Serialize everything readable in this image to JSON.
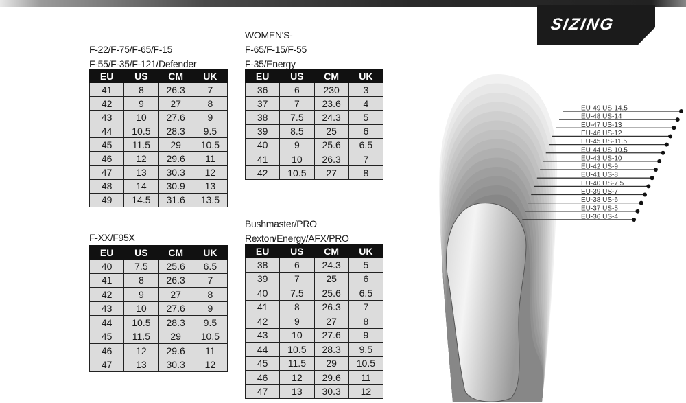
{
  "header": {
    "title": "SIZING"
  },
  "tables": [
    {
      "title_lines": [
        "F-22/F-75/F-65/F-15",
        "F-55/F-35/F-121/Defender"
      ],
      "columns": [
        "EU",
        "US",
        "CM",
        "UK"
      ],
      "rows": [
        [
          "41",
          "8",
          "26.3",
          "7"
        ],
        [
          "42",
          "9",
          "27",
          "8"
        ],
        [
          "43",
          "10",
          "27.6",
          "9"
        ],
        [
          "44",
          "10.5",
          "28.3",
          "9.5"
        ],
        [
          "45",
          "11.5",
          "29",
          "10.5"
        ],
        [
          "46",
          "12",
          "29.6",
          "11"
        ],
        [
          "47",
          "13",
          "30.3",
          "12"
        ],
        [
          "48",
          "14",
          "30.9",
          "13"
        ],
        [
          "49",
          "14.5",
          "31.6",
          "13.5"
        ]
      ]
    },
    {
      "title_lines": [
        "WOMEN'S-",
        "F-65/F-15/F-55",
        "F-35/Energy"
      ],
      "columns": [
        "EU",
        "US",
        "CM",
        "UK"
      ],
      "rows": [
        [
          "36",
          "6",
          "230",
          "3"
        ],
        [
          "37",
          "7",
          "23.6",
          "4"
        ],
        [
          "38",
          "7.5",
          "24.3",
          "5"
        ],
        [
          "39",
          "8.5",
          "25",
          "6"
        ],
        [
          "40",
          "9",
          "25.6",
          "6.5"
        ],
        [
          "41",
          "10",
          "26.3",
          "7"
        ],
        [
          "42",
          "10.5",
          "27",
          "8"
        ]
      ]
    },
    {
      "title_lines": [
        "F-XX/F95X"
      ],
      "columns": [
        "EU",
        "US",
        "CM",
        "UK"
      ],
      "rows": [
        [
          "40",
          "7.5",
          "25.6",
          "6.5"
        ],
        [
          "41",
          "8",
          "26.3",
          "7"
        ],
        [
          "42",
          "9",
          "27",
          "8"
        ],
        [
          "43",
          "10",
          "27.6",
          "9"
        ],
        [
          "44",
          "10.5",
          "28.3",
          "9.5"
        ],
        [
          "45",
          "11.5",
          "29",
          "10.5"
        ],
        [
          "46",
          "12",
          "29.6",
          "11"
        ],
        [
          "47",
          "13",
          "30.3",
          "12"
        ]
      ]
    },
    {
      "title_lines": [
        "Bushmaster/PRO",
        "Rexton/Energy/AFX/PRO"
      ],
      "columns": [
        "EU",
        "US",
        "CM",
        "UK"
      ],
      "rows": [
        [
          "38",
          "6",
          "24.3",
          "5"
        ],
        [
          "39",
          "7",
          "25",
          "6"
        ],
        [
          "40",
          "7.5",
          "25.6",
          "6.5"
        ],
        [
          "41",
          "8",
          "26.3",
          "7"
        ],
        [
          "42",
          "9",
          "27",
          "8"
        ],
        [
          "43",
          "10",
          "27.6",
          "9"
        ],
        [
          "44",
          "10.5",
          "28.3",
          "9.5"
        ],
        [
          "45",
          "11.5",
          "29",
          "10.5"
        ],
        [
          "46",
          "12",
          "29.6",
          "11"
        ],
        [
          "47",
          "13",
          "30.3",
          "12"
        ]
      ]
    }
  ],
  "insole_labels": [
    "EU-49  US-14.5",
    "EU-48  US-14",
    "EU-47 US-13",
    "EU-46  US-12",
    "EU-45  US-11.5",
    "EU-44  US-10.5",
    "EU-43  US-10",
    "EU-42  US-9",
    "EU-41  US-8",
    "EU-40  US-7.5",
    "EU-39  US-7",
    "EU-38  US-6",
    "EU-37  US-5",
    "EU-36  US-4"
  ]
}
